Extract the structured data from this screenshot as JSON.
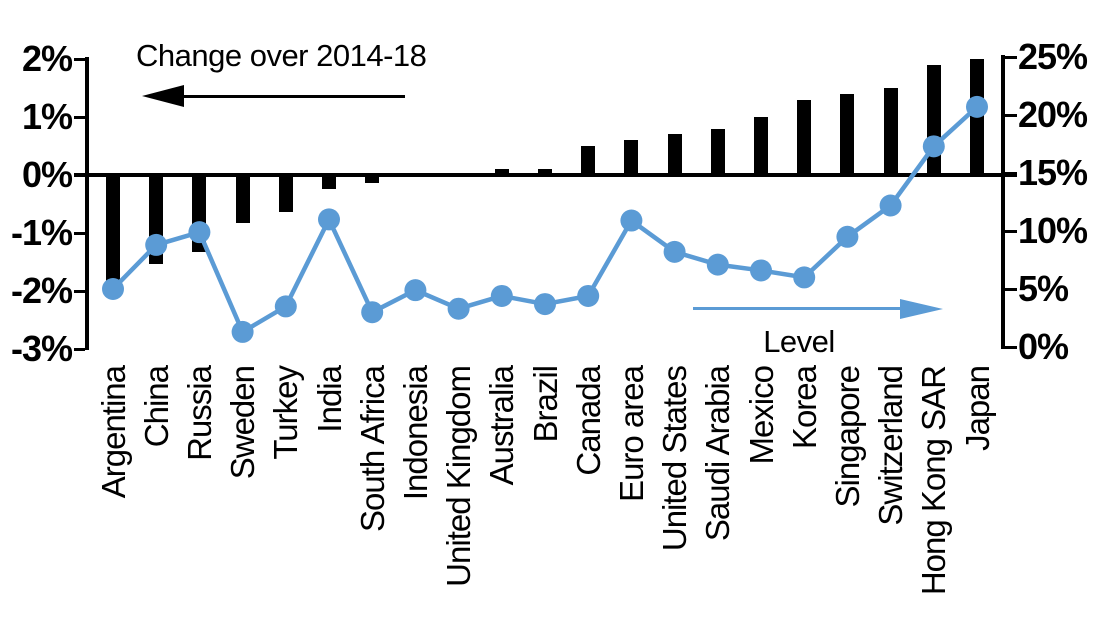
{
  "chart_data": {
    "type": "bar",
    "subtype": "combo-bar-line-dual-axis",
    "categories": [
      "Argentina",
      "China",
      "Russia",
      "Sweden",
      "Turkey",
      "India",
      "South Africa",
      "Indonesia",
      "United Kingdom",
      "Australia",
      "Brazil",
      "Canada",
      "Euro area",
      "United States",
      "Saudi Arabia",
      "Mexico",
      "Korea",
      "Singapore",
      "Switzerland",
      "Hong Kong SAR",
      "Japan"
    ],
    "series": [
      {
        "name": "Change over 2014-18",
        "type": "bar",
        "axis": "left",
        "color": "#000000",
        "values": [
          -1.8,
          -1.5,
          -1.3,
          -0.8,
          -0.6,
          -0.2,
          -0.1,
          0.0,
          0.0,
          0.1,
          0.1,
          0.5,
          0.6,
          0.7,
          0.8,
          1.0,
          1.3,
          1.4,
          1.5,
          1.9,
          2.0
        ]
      },
      {
        "name": "Level",
        "type": "line",
        "axis": "right",
        "color": "#5B9BD5",
        "values": [
          5.0,
          8.8,
          9.9,
          1.3,
          3.5,
          11.0,
          3.0,
          4.9,
          3.3,
          4.4,
          3.7,
          4.4,
          10.9,
          8.2,
          7.1,
          6.6,
          6.0,
          9.5,
          12.2,
          17.3,
          20.7
        ]
      }
    ],
    "left_axis": {
      "unit": "%",
      "min": -3,
      "max": 2,
      "tick_labels": [
        "2%",
        "1%",
        "0%",
        "-1%",
        "-2%",
        "-3%"
      ],
      "tick_values": [
        2,
        1,
        0,
        -1,
        -2,
        -3
      ]
    },
    "right_axis": {
      "unit": "%",
      "min": 0,
      "max": 25,
      "tick_labels": [
        "25%",
        "20%",
        "15%",
        "10%",
        "5%",
        "0%"
      ],
      "tick_values": [
        25,
        20,
        15,
        10,
        5,
        0
      ]
    },
    "grid": false,
    "legend_position": "none (in-plot arrow annotations)",
    "annotations": {
      "change": {
        "label": "Change over 2014-18",
        "arrow_direction": "left",
        "color": "#000000"
      },
      "level": {
        "label": "Level",
        "arrow_direction": "right",
        "color": "#5B9BD5"
      }
    }
  },
  "colors": {
    "bar": "#000000",
    "line": "#5B9BD5",
    "background": "#FFFFFF",
    "text": "#000000"
  }
}
